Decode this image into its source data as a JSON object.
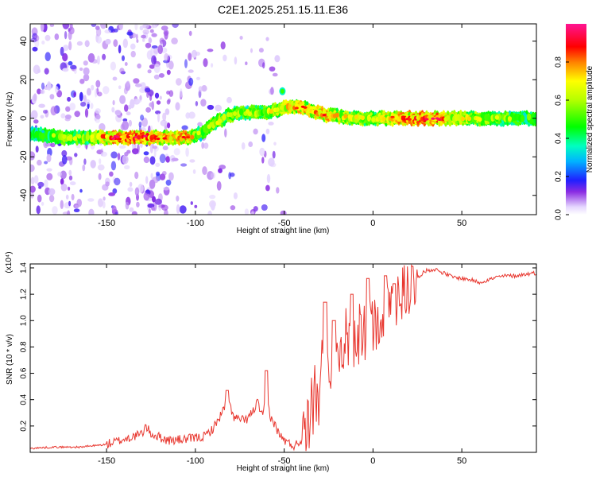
{
  "chart_data": [
    {
      "type": "heatmap",
      "title": "C2E1.2025.251.15.11.E36",
      "xlabel": "Height of straight line (km)",
      "ylabel": "Frequency (Hz)",
      "xlim": [
        -193,
        92
      ],
      "ylim": [
        -50,
        49
      ],
      "xticks": [
        -150,
        -100,
        -50,
        0,
        50
      ],
      "yticks": [
        -40,
        -20,
        0,
        20,
        40
      ],
      "colorbar": {
        "label": "Normalized spectral amplitude",
        "range": [
          0,
          1
        ],
        "ticks": [
          0.0,
          0.2,
          0.4,
          0.6,
          0.8
        ]
      },
      "ridge": [
        {
          "x": -193,
          "freq": -8,
          "amp": 0.4
        },
        {
          "x": -175,
          "freq": -10,
          "amp": 0.6
        },
        {
          "x": -160,
          "freq": -10,
          "amp": 0.55
        },
        {
          "x": -145,
          "freq": -10,
          "amp": 0.9
        },
        {
          "x": -130,
          "freq": -10,
          "amp": 0.9
        },
        {
          "x": -115,
          "freq": -10,
          "amp": 0.75
        },
        {
          "x": -105,
          "freq": -10,
          "amp": 0.8
        },
        {
          "x": -97,
          "freq": -8,
          "amp": 0.55
        },
        {
          "x": -90,
          "freq": -3,
          "amp": 0.6
        },
        {
          "x": -80,
          "freq": 2,
          "amp": 0.6
        },
        {
          "x": -70,
          "freq": 3,
          "amp": 0.55
        },
        {
          "x": -60,
          "freq": 3,
          "amp": 0.6
        },
        {
          "x": -52,
          "freq": 5,
          "amp": 0.65
        },
        {
          "x": -45,
          "freq": 6,
          "amp": 0.8
        },
        {
          "x": -40,
          "freq": 6,
          "amp": 0.8
        },
        {
          "x": -35,
          "freq": 4,
          "amp": 0.7
        },
        {
          "x": -28,
          "freq": 2,
          "amp": 0.8
        },
        {
          "x": -20,
          "freq": 1,
          "amp": 0.7
        },
        {
          "x": -10,
          "freq": 0,
          "amp": 0.65
        },
        {
          "x": 0,
          "freq": 0,
          "amp": 0.6
        },
        {
          "x": 15,
          "freq": 0,
          "amp": 0.8
        },
        {
          "x": 30,
          "freq": 0,
          "amp": 0.9
        },
        {
          "x": 50,
          "freq": 0,
          "amp": 0.7
        },
        {
          "x": 70,
          "freq": 0,
          "amp": 0.55
        },
        {
          "x": 92,
          "freq": 0,
          "amp": 0.5
        }
      ]
    },
    {
      "type": "line",
      "xlabel": "Height of straight line (km)",
      "ylabel": "SNR (10 * v/v)",
      "scale_label": "(x10⁴)",
      "xlim": [
        -193,
        92
      ],
      "ylim": [
        0,
        1.43
      ],
      "xticks": [
        -150,
        -100,
        -50,
        0,
        50
      ],
      "yticks": [
        0.2,
        0.4,
        0.6,
        0.8,
        1.0,
        1.2,
        1.4
      ],
      "color": "#e8372f",
      "series": [
        {
          "name": "SNR",
          "x": [
            -193,
            -180,
            -165,
            -150,
            -140,
            -130,
            -128,
            -125,
            -115,
            -105,
            -95,
            -90,
            -85,
            -82,
            -78,
            -72,
            -68,
            -65,
            -62,
            -60,
            -58,
            -55,
            -52,
            -48,
            -44,
            -40,
            -35,
            -30,
            -27,
            -25,
            -20,
            -15,
            -10,
            -5,
            0,
            5,
            10,
            15,
            20,
            25,
            30,
            35,
            40,
            45,
            50,
            55,
            60,
            65,
            70,
            75,
            80,
            85,
            90,
            92
          ],
          "y": [
            0.03,
            0.04,
            0.04,
            0.06,
            0.1,
            0.14,
            0.2,
            0.14,
            0.09,
            0.1,
            0.12,
            0.18,
            0.3,
            0.4,
            0.26,
            0.24,
            0.3,
            0.38,
            0.26,
            0.45,
            0.28,
            0.2,
            0.12,
            0.07,
            0.05,
            0.1,
            0.25,
            0.4,
            0.7,
            0.5,
            0.65,
            0.75,
            0.8,
            0.9,
            0.97,
            1.05,
            1.13,
            1.2,
            1.25,
            1.33,
            1.38,
            1.39,
            1.36,
            1.33,
            1.32,
            1.31,
            1.29,
            1.31,
            1.33,
            1.34,
            1.34,
            1.35,
            1.36,
            1.36
          ]
        }
      ],
      "spikes": [
        {
          "x": -82,
          "y": 0.47
        },
        {
          "x": -60,
          "y": 0.62
        },
        {
          "x": -27,
          "y": 1.14
        },
        {
          "x": -22,
          "y": 1.0
        },
        {
          "x": -12,
          "y": 1.2
        },
        {
          "x": -3,
          "y": 1.32
        },
        {
          "x": 7,
          "y": 1.34
        },
        {
          "x": 12,
          "y": 1.28
        }
      ]
    }
  ]
}
